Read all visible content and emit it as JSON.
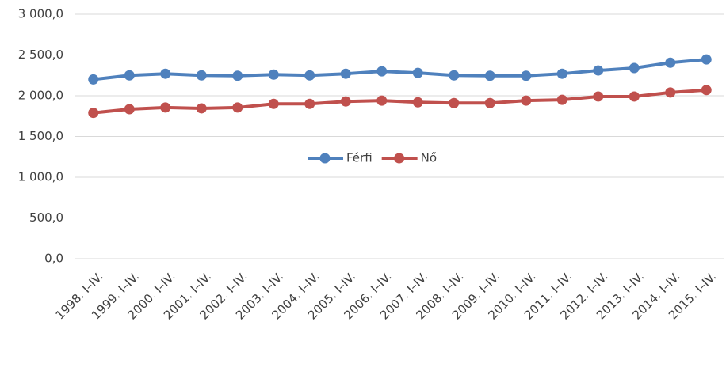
{
  "chart_data": {
    "type": "line",
    "categories": [
      "1998. I–IV.",
      "1999. I–IV.",
      "2000. I–IV.",
      "2001. I–IV.",
      "2002. I–IV.",
      "2003. I–IV.",
      "2004. I–IV.",
      "2005. I–IV.",
      "2006. I–IV.",
      "2007. I–IV.",
      "2008. I–IV.",
      "2009. I–IV.",
      "2010. I–IV.",
      "2011. I–IV.",
      "2012. I–IV.",
      "2013. I–IV.",
      "2014. I–IV.",
      "2015. I–IV."
    ],
    "series": [
      {
        "name": "Férfi",
        "color": "#4f81bd",
        "values": [
          2200,
          2250,
          2270,
          2250,
          2245,
          2260,
          2250,
          2270,
          2300,
          2280,
          2250,
          2245,
          2245,
          2270,
          2310,
          2340,
          2405,
          2445
        ]
      },
      {
        "name": "Nő",
        "color": "#c0504d",
        "values": [
          1790,
          1835,
          1855,
          1845,
          1855,
          1900,
          1900,
          1930,
          1940,
          1920,
          1910,
          1910,
          1940,
          1950,
          1990,
          1990,
          2040,
          2070
        ]
      }
    ],
    "ylim": [
      0,
      3000
    ],
    "yticks": [
      {
        "value": 0,
        "label": "0,0"
      },
      {
        "value": 500,
        "label": "500,0"
      },
      {
        "value": 1000,
        "label": "1 000,0"
      },
      {
        "value": 1500,
        "label": "1 500,0"
      },
      {
        "value": 2000,
        "label": "2 000,0"
      },
      {
        "value": 2500,
        "label": "2 500,0"
      },
      {
        "value": 3000,
        "label": "3 000,0"
      }
    ],
    "grid": true
  }
}
